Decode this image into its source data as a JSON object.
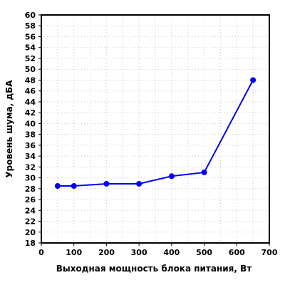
{
  "chart_data": {
    "type": "line",
    "xlabel": "Выходная мощность блока питания, Вт",
    "ylabel": "Уровень шума, дБА",
    "xlim": [
      0,
      700
    ],
    "ylim": [
      18,
      60
    ],
    "x_ticks": [
      0,
      100,
      200,
      300,
      400,
      500,
      600,
      700
    ],
    "y_ticks": [
      18,
      20,
      22,
      24,
      26,
      28,
      30,
      32,
      34,
      36,
      38,
      40,
      42,
      44,
      46,
      48,
      50,
      52,
      54,
      56,
      58,
      60
    ],
    "x_minor_step": 50,
    "grid": true,
    "series": [
      {
        "color": "#0000ee",
        "points": [
          {
            "x": 50,
            "y": 28.5
          },
          {
            "x": 100,
            "y": 28.5
          },
          {
            "x": 200,
            "y": 28.9
          },
          {
            "x": 300,
            "y": 28.9
          },
          {
            "x": 400,
            "y": 30.3
          },
          {
            "x": 500,
            "y": 31.0
          },
          {
            "x": 650,
            "y": 48.0
          }
        ]
      }
    ]
  }
}
